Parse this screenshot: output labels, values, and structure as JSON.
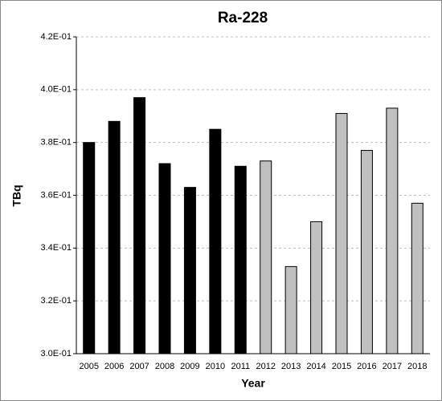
{
  "chart_data": {
    "type": "bar",
    "title": "Ra-228",
    "x_label": "Year",
    "y_label": "TBq",
    "categories": [
      "2005",
      "2006",
      "2007",
      "2008",
      "2009",
      "2010",
      "2011",
      "2012",
      "2013",
      "2014",
      "2015",
      "2016",
      "2017",
      "2018"
    ],
    "values": [
      0.38,
      0.388,
      0.397,
      0.372,
      0.363,
      0.385,
      0.371,
      0.373,
      0.333,
      0.35,
      0.391,
      0.377,
      0.393,
      0.357
    ],
    "colors": [
      "#000000",
      "#000000",
      "#000000",
      "#000000",
      "#000000",
      "#000000",
      "#000000",
      "#c0c0c0",
      "#c0c0c0",
      "#c0c0c0",
      "#c0c0c0",
      "#c0c0c0",
      "#c0c0c0",
      "#c0c0c0"
    ],
    "ylim": [
      0.3,
      0.42
    ],
    "yticks": [
      {
        "value": 0.3,
        "label": "3.0E-01"
      },
      {
        "value": 0.32,
        "label": "3.2E-01"
      },
      {
        "value": 0.34,
        "label": "3.4E-01"
      },
      {
        "value": 0.36,
        "label": "3.6E-01"
      },
      {
        "value": 0.38,
        "label": "3.8E-01"
      },
      {
        "value": 0.4,
        "label": "4.0E-01"
      },
      {
        "value": 0.42,
        "label": "4.2E-01"
      }
    ],
    "grid": true
  }
}
